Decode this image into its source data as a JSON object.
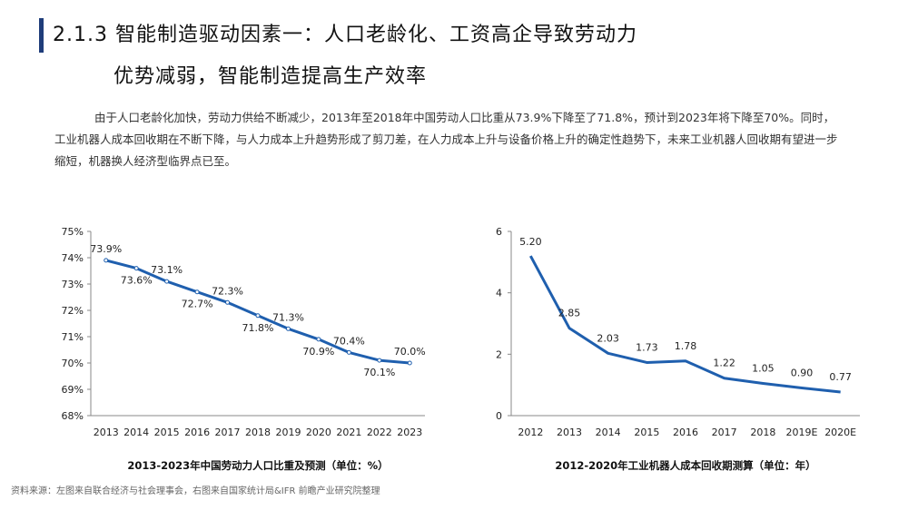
{
  "header": {
    "title_line1": "2.1.3 智能制造驱动因素一：人口老龄化、工资高企导致劳动力",
    "title_line2": "优势减弱，智能制造提高生产效率"
  },
  "body_text": "由于人口老龄化加快，劳动力供给不断减少，2013年至2018年中国劳动人口比重从73.9%下降至了71.8%，预计到2023年将下降至70%。同时，工业机器人成本回收期在不断下降，与人力成本上升趋势形成了剪刀差，在人力成本上升与设备价格上升的确定性趋势下，未来工业机器人回收期有望进一步缩短，机器换人经济型临界点已至。",
  "source": "资料来源：左图来自联合经济与社会理事会，右图来自国家统计局&IFR 前瞻产业研究院整理",
  "colors": {
    "accent": "#1f3d7a",
    "line": "#1f5fae",
    "highlight": "#e02020"
  },
  "chart_data": [
    {
      "type": "line",
      "caption": "2013-2023年中国劳动力人口比重及预测（单位：%）",
      "x": [
        "2013",
        "2014",
        "2015",
        "2016",
        "2017",
        "2018",
        "2019",
        "2020",
        "2021",
        "2022",
        "2023"
      ],
      "values": [
        73.9,
        73.6,
        73.1,
        72.7,
        72.3,
        71.8,
        71.3,
        70.9,
        70.4,
        70.1,
        70.0
      ],
      "labels": [
        "73.9%",
        "73.6%",
        "73.1%",
        "72.7%",
        "72.3%",
        "71.8%",
        "71.3%",
        "70.9%",
        "70.4%",
        "70.1%",
        "70.0%"
      ],
      "label_pos": [
        "above",
        "below",
        "above",
        "below",
        "above",
        "below",
        "above",
        "below",
        "above",
        "below",
        "above"
      ],
      "highlight_index": 10,
      "yticks": [
        "68%",
        "69%",
        "70%",
        "71%",
        "72%",
        "73%",
        "74%",
        "75%"
      ],
      "ylim": [
        68,
        75
      ],
      "grid": false,
      "markers": true
    },
    {
      "type": "line",
      "caption": "2012-2020年工业机器人成本回收期测算（单位：年）",
      "x": [
        "2012",
        "2013",
        "2014",
        "2015",
        "2016",
        "2017",
        "2018",
        "2019E",
        "2020E"
      ],
      "values": [
        5.2,
        2.85,
        2.03,
        1.73,
        1.78,
        1.22,
        1.05,
        0.9,
        0.77
      ],
      "labels": [
        "5.20",
        "2.85",
        "2.03",
        "1.73",
        "1.78",
        "1.22",
        "1.05",
        "0.90",
        "0.77"
      ],
      "yticks": [
        "0",
        "2",
        "4",
        "6"
      ],
      "ylim": [
        0,
        6
      ],
      "grid": false,
      "markers": false
    }
  ]
}
